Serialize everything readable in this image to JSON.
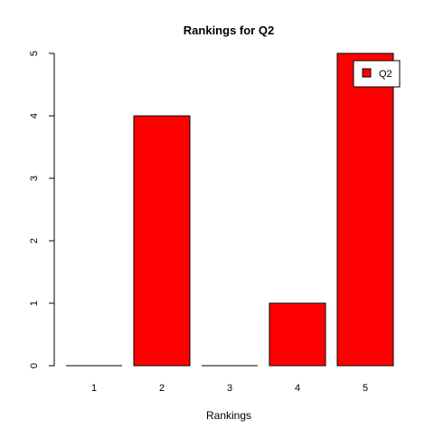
{
  "chart_data": {
    "type": "bar",
    "title": "Rankings for Q2",
    "xlabel": "Rankings",
    "ylabel": "",
    "categories": [
      "1",
      "2",
      "3",
      "4",
      "5"
    ],
    "series": [
      {
        "name": "Q2",
        "values": [
          0,
          4,
          0,
          1,
          5
        ],
        "color": "#ff0000"
      }
    ],
    "ylim": [
      0,
      5
    ],
    "yticks": [
      0,
      1,
      2,
      3,
      4,
      5
    ],
    "grid": false,
    "legend_position": "top-right"
  }
}
